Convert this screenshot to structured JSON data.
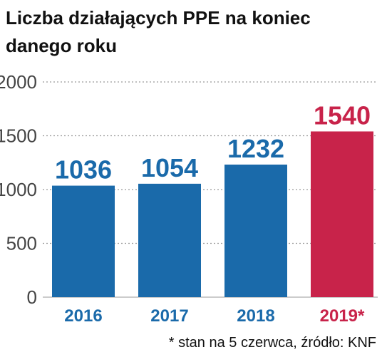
{
  "title_lines": [
    "Liczba działających PPE na koniec",
    "danego roku"
  ],
  "footnote": "* stan na 5 czerwca, źródło: KNF",
  "colors": {
    "blue": "#1a6aaa",
    "red": "#c8234a",
    "grid": "#9a9a9a",
    "tick_text": "#444444"
  },
  "chart_data": {
    "type": "bar",
    "title": "Liczba działających PPE na koniec danego roku",
    "categories": [
      "2016",
      "2017",
      "2018",
      "2019*"
    ],
    "values": [
      1036,
      1054,
      1232,
      1540
    ],
    "value_labels": [
      "1036",
      "1054",
      "1232",
      "1540"
    ],
    "highlight": [
      false,
      false,
      false,
      true
    ],
    "yticks": [
      "0",
      "500",
      "1000",
      "1500",
      "2000"
    ],
    "ylim": [
      0,
      2000
    ],
    "xlabel": "",
    "ylabel": "",
    "grid": true
  }
}
